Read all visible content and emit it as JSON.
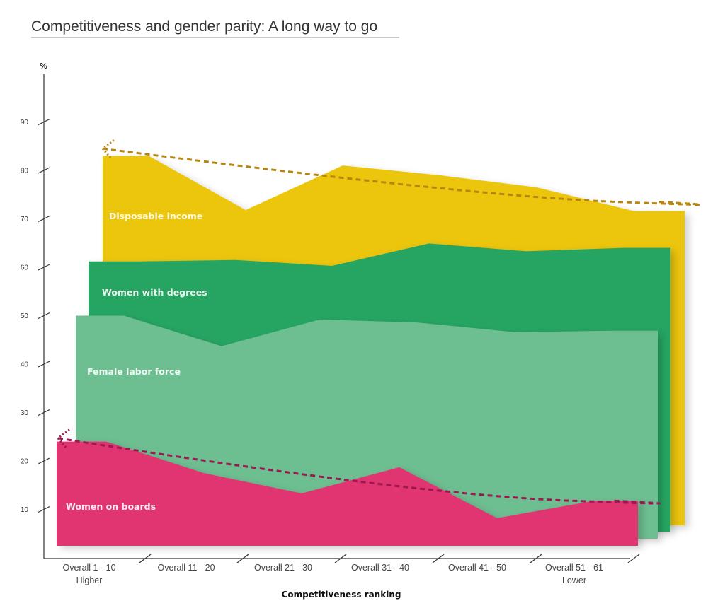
{
  "chart_data": {
    "type": "area",
    "title": "Competitiveness and gender parity: A long way to go",
    "ylabel": "%",
    "xlabel": "Competitiveness ranking",
    "ylim": [
      0,
      100
    ],
    "yticks": [
      10,
      20,
      30,
      40,
      50,
      60,
      70,
      80,
      90
    ],
    "ytick_labels": [
      "10",
      "20",
      "30",
      "40",
      "50",
      "60",
      "70",
      "80",
      "90"
    ],
    "categories": [
      "Overall 1 - 10",
      "Overall 11 - 20",
      "Overall 21 - 30",
      "Overall 31 - 40",
      "Overall 41 - 50",
      "Overall 51 - 61"
    ],
    "category_sublabels": [
      "Higher",
      "",
      "",
      "",
      "",
      "Lower"
    ],
    "grid": false,
    "series": [
      {
        "name": "Disposable income",
        "values": [
          83,
          71.8,
          81,
          79,
          76.5,
          71.6
        ],
        "color": "#ECC509",
        "trend": [
          84.5,
          73.5
        ],
        "trend_color": "#B8860F"
      },
      {
        "name": "Women with degrees",
        "values": [
          61.2,
          61.5,
          60.3,
          64.9,
          63.3,
          64.0
        ],
        "color": "#28A562"
      },
      {
        "name": "Female labor force",
        "values": [
          50,
          43.7,
          49.2,
          48.6,
          46.6,
          46.9
        ],
        "color": "#6DBE91"
      },
      {
        "name": "Women on boards",
        "values": [
          24,
          17.5,
          13.3,
          18.7,
          8.2,
          11.8
        ],
        "color": "#E0346F",
        "trend": [
          24.7,
          11.8
        ],
        "trend_color": "#9C1850"
      }
    ]
  }
}
